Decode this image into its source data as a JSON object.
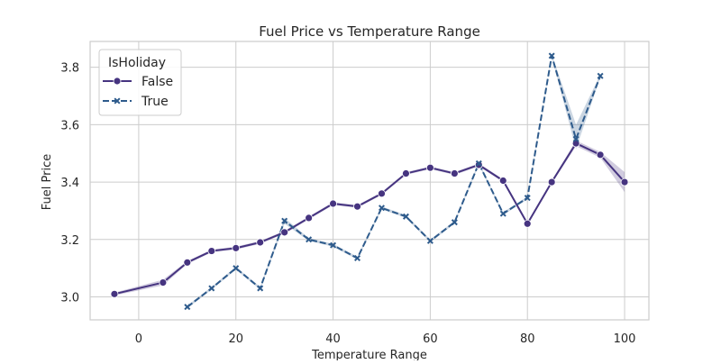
{
  "chart_data": {
    "type": "line",
    "title": "Fuel Price vs Temperature Range",
    "xlabel": "Temperature Range",
    "ylabel": "Fuel Price",
    "xlim": [
      -10,
      105
    ],
    "ylim": [
      2.92,
      3.89
    ],
    "x_ticks": [
      0,
      20,
      40,
      60,
      80,
      100
    ],
    "y_ticks": [
      3.0,
      3.2,
      3.4,
      3.6,
      3.8
    ],
    "y_tick_labels": [
      "3.0",
      "3.2",
      "3.4",
      "3.6",
      "3.8"
    ],
    "grid": true,
    "legend": {
      "title": "IsHoliday",
      "placement": "top-left"
    },
    "series": [
      {
        "name": "False",
        "color": "#463480",
        "marker": "circle",
        "linestyle": "solid",
        "x": [
          -5,
          5,
          10,
          15,
          20,
          25,
          30,
          35,
          40,
          45,
          50,
          55,
          60,
          65,
          70,
          75,
          80,
          85,
          90,
          95,
          100
        ],
        "y": [
          3.01,
          3.05,
          3.12,
          3.16,
          3.17,
          3.19,
          3.225,
          3.275,
          3.325,
          3.315,
          3.36,
          3.43,
          3.45,
          3.43,
          3.46,
          3.405,
          3.255,
          3.4,
          3.535,
          3.495,
          3.4
        ],
        "ci_lower": [
          3.005,
          3.04,
          3.115,
          3.155,
          3.165,
          3.185,
          3.22,
          3.27,
          3.32,
          3.31,
          3.355,
          3.425,
          3.445,
          3.425,
          3.455,
          3.4,
          3.25,
          3.395,
          3.525,
          3.485,
          3.365
        ],
        "ci_upper": [
          3.015,
          3.06,
          3.125,
          3.165,
          3.175,
          3.195,
          3.23,
          3.28,
          3.33,
          3.32,
          3.365,
          3.435,
          3.455,
          3.435,
          3.465,
          3.41,
          3.26,
          3.405,
          3.545,
          3.505,
          3.435
        ]
      },
      {
        "name": "True",
        "color": "#2e5b8c",
        "marker": "x",
        "linestyle": "dashed",
        "x": [
          10,
          15,
          20,
          25,
          30,
          35,
          40,
          45,
          50,
          55,
          60,
          65,
          70,
          75,
          80,
          85,
          90,
          95
        ],
        "y": [
          2.965,
          3.03,
          3.1,
          3.03,
          3.265,
          3.2,
          3.18,
          3.135,
          3.31,
          3.28,
          3.195,
          3.26,
          3.465,
          3.29,
          3.345,
          3.84,
          3.55,
          3.77
        ],
        "ci_lower": [
          2.96,
          3.025,
          3.095,
          3.025,
          3.255,
          3.195,
          3.175,
          3.13,
          3.305,
          3.275,
          3.19,
          3.255,
          3.46,
          3.285,
          3.34,
          3.835,
          3.515,
          3.765
        ],
        "ci_upper": [
          2.97,
          3.035,
          3.105,
          3.035,
          3.275,
          3.205,
          3.185,
          3.14,
          3.315,
          3.285,
          3.2,
          3.265,
          3.47,
          3.295,
          3.35,
          3.845,
          3.6,
          3.775
        ]
      }
    ]
  }
}
